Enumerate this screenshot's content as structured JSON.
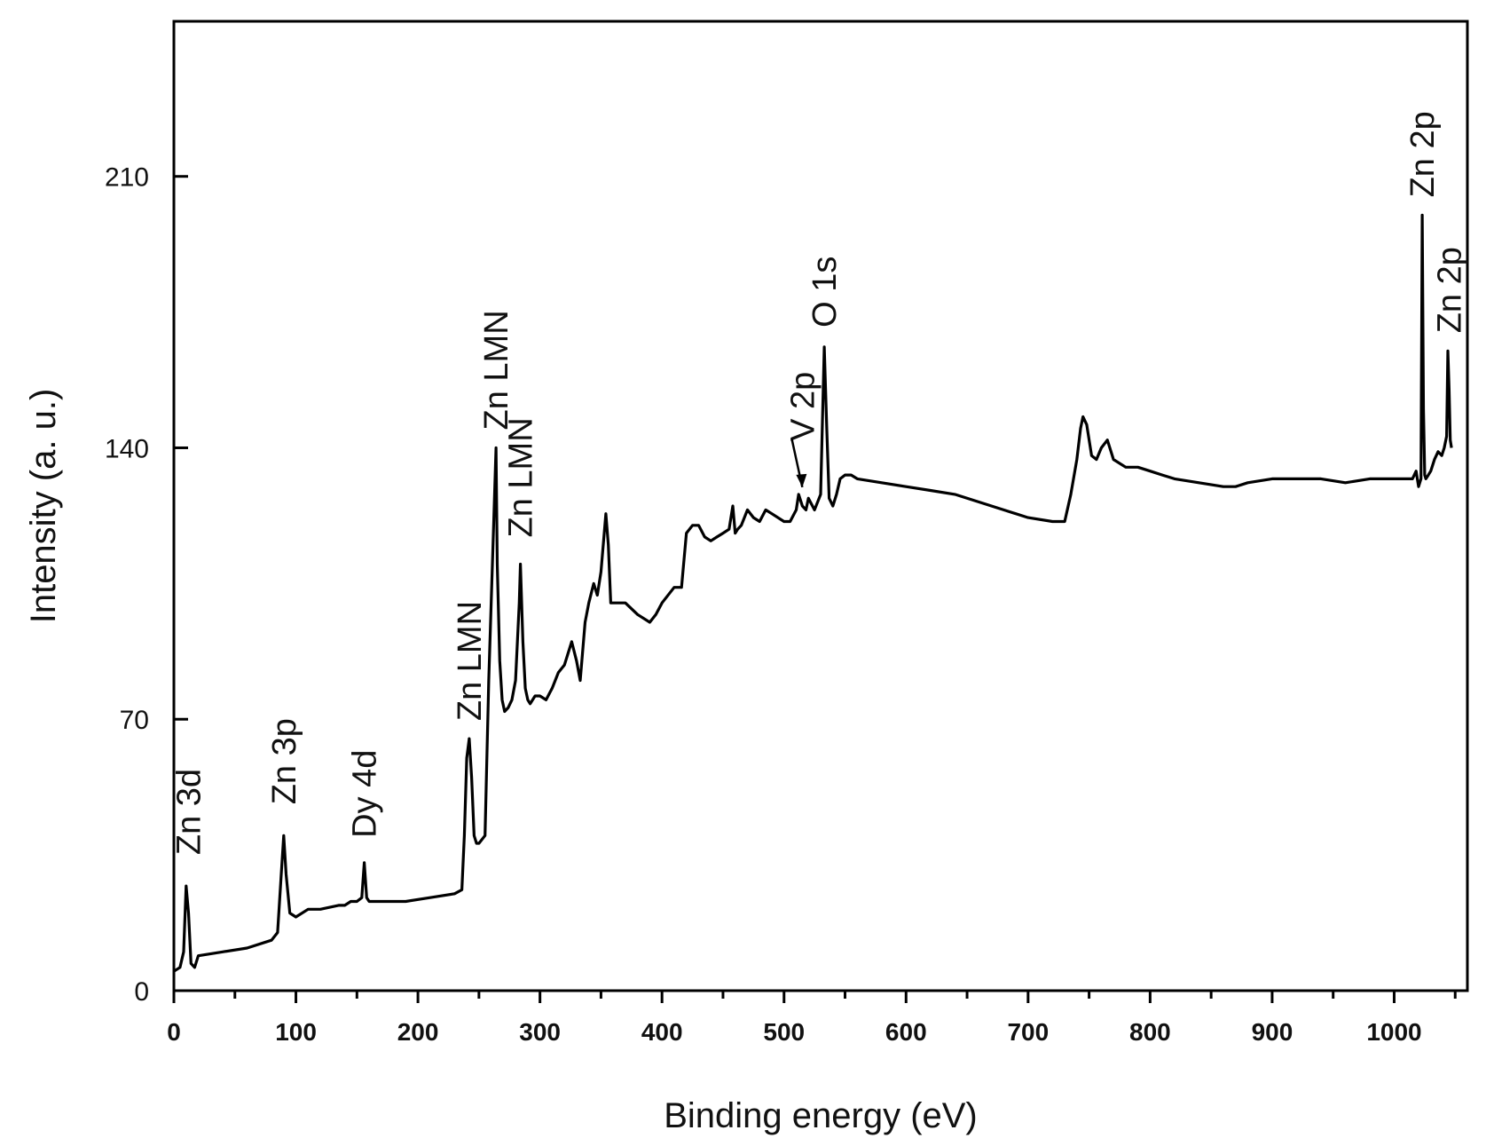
{
  "chart_data": {
    "type": "line",
    "title": "",
    "xlabel": "Binding energy (eV)",
    "ylabel": "Intensity (a. u.)",
    "xlim": [
      0,
      1060
    ],
    "ylim": [
      0,
      250
    ],
    "x_ticks": [
      0,
      100,
      200,
      300,
      400,
      500,
      600,
      700,
      800,
      900,
      1000
    ],
    "y_ticks": [
      0,
      70,
      140,
      210
    ],
    "grid": false,
    "legend": "none",
    "line_color": "#000000",
    "series": [
      {
        "x": [
          0,
          5,
          8,
          10,
          12,
          14,
          17,
          20,
          40,
          60,
          80,
          85,
          88,
          90,
          92,
          95,
          100,
          110,
          120,
          135,
          140,
          145,
          150,
          154,
          156,
          158,
          160,
          170,
          190,
          210,
          230,
          236,
          238,
          240,
          242,
          244,
          246,
          248,
          250,
          255,
          258,
          262,
          264,
          265,
          267,
          269,
          271,
          274,
          277,
          280,
          283,
          284,
          286,
          288,
          290,
          292,
          296,
          300,
          305,
          310,
          315,
          320,
          326,
          330,
          333,
          337,
          340,
          344,
          347,
          350,
          354,
          356,
          358,
          360,
          365,
          370,
          380,
          390,
          395,
          400,
          410,
          416,
          420,
          425,
          430,
          435,
          440,
          445,
          450,
          455,
          458,
          460,
          462,
          465,
          470,
          475,
          480,
          485,
          490,
          500,
          505,
          510,
          512,
          515,
          518,
          520,
          525,
          530,
          533,
          535,
          537,
          540,
          543,
          546,
          550,
          555,
          560,
          580,
          600,
          620,
          640,
          660,
          680,
          700,
          720,
          730,
          735,
          740,
          743,
          745,
          748,
          752,
          756,
          760,
          765,
          770,
          780,
          790,
          800,
          810,
          820,
          840,
          860,
          870,
          880,
          900,
          920,
          940,
          960,
          980,
          1000,
          1010,
          1015,
          1018,
          1020,
          1022,
          1023,
          1024,
          1025,
          1026,
          1028,
          1030,
          1033,
          1036,
          1039,
          1041,
          1043,
          1044,
          1045,
          1046,
          1047
        ],
        "y": [
          5,
          6,
          10,
          27,
          20,
          7,
          6,
          9,
          10,
          11,
          13,
          15,
          30,
          40,
          30,
          20,
          19,
          21,
          21,
          22,
          22,
          23,
          23,
          24,
          33,
          24,
          23,
          23,
          23,
          24,
          25,
          26,
          40,
          60,
          65,
          55,
          40,
          38,
          38,
          40,
          80,
          120,
          140,
          110,
          85,
          75,
          72,
          73,
          75,
          80,
          100,
          110,
          90,
          78,
          75,
          74,
          76,
          76,
          75,
          78,
          82,
          84,
          90,
          85,
          80,
          95,
          100,
          105,
          102,
          108,
          123,
          115,
          100,
          100,
          100,
          100,
          97,
          95,
          97,
          100,
          104,
          104,
          118,
          120,
          120,
          117,
          116,
          117,
          118,
          119,
          125,
          118,
          119,
          120,
          124,
          122,
          121,
          124,
          123,
          121,
          121,
          124,
          128,
          125,
          124,
          127,
          124,
          128,
          166,
          145,
          127,
          125,
          128,
          132,
          133,
          133,
          132,
          131,
          130,
          129,
          128,
          126,
          124,
          122,
          121,
          121,
          128,
          137,
          145,
          148,
          146,
          138,
          137,
          140,
          142,
          137,
          135,
          135,
          134,
          133,
          132,
          131,
          130,
          130,
          131,
          132,
          132,
          132,
          131,
          132,
          132,
          132,
          132,
          134,
          130,
          132,
          200,
          150,
          133,
          132,
          133,
          134,
          137,
          139,
          138,
          140,
          143,
          165,
          155,
          142,
          140
        ]
      }
    ],
    "annotations": [
      {
        "text": "Zn 3d",
        "x": 12,
        "y": 27
      },
      {
        "text": "Zn 3p",
        "x": 90,
        "y": 40
      },
      {
        "text": "Dy 4d",
        "x": 156,
        "y": 33
      },
      {
        "text": "Zn LMN",
        "x": 242,
        "y": 65
      },
      {
        "text": "Zn LMN",
        "x": 264,
        "y": 140
      },
      {
        "text": "Zn LMN",
        "x": 284,
        "y": 110
      },
      {
        "text": "V 2p",
        "x": 515,
        "y": 128
      },
      {
        "text": "O 1s",
        "x": 533,
        "y": 166
      },
      {
        "text": "Zn 2p",
        "x": 1023,
        "y": 200
      },
      {
        "text": "Zn 2p",
        "x": 1045,
        "y": 165
      }
    ]
  }
}
